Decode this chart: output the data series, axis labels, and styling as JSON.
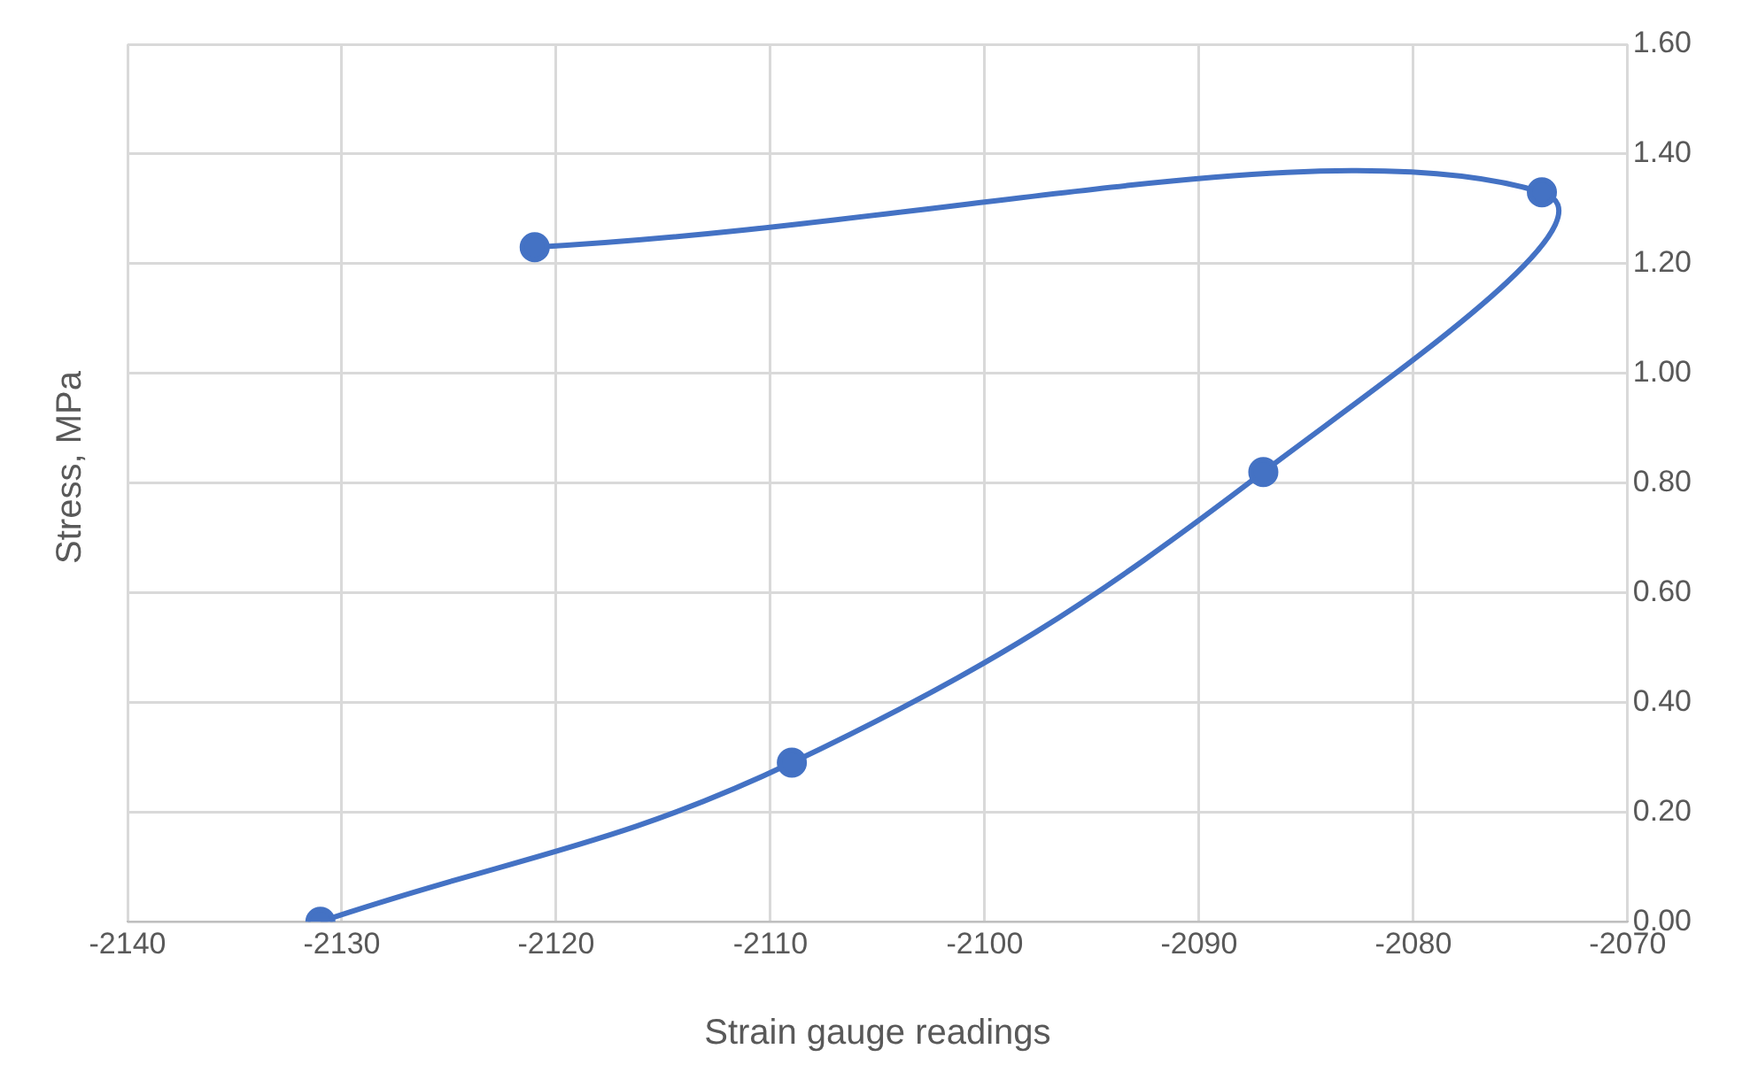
{
  "chart_data": {
    "type": "line",
    "xlabel": "Strain gauge readings",
    "ylabel": "Stress, MPa",
    "x": [
      -2131,
      -2109,
      -2087,
      -2074,
      -2121
    ],
    "series": [
      {
        "color": "#4472c4",
        "values": [
          0,
          0.29,
          0.82,
          1.33,
          1.23
        ]
      }
    ],
    "xlim": [
      -2140,
      -2070
    ],
    "xticks": [
      -2140,
      -2130,
      -2120,
      -2110,
      -2100,
      -2090,
      -2080,
      -2070
    ],
    "ylim": [
      0,
      1.6
    ],
    "yticks": [
      {
        "value": 0,
        "label": "0.00"
      },
      {
        "value": 0.2,
        "label": "0.20"
      },
      {
        "value": 0.4,
        "label": "0.40"
      },
      {
        "value": 0.6,
        "label": "0.60"
      },
      {
        "value": 0.8,
        "label": "0.80"
      },
      {
        "value": 1,
        "label": "1.00"
      },
      {
        "value": 1.2,
        "label": "1.20"
      },
      {
        "value": 1.4,
        "label": "1.40"
      },
      {
        "value": 1.6,
        "label": "1.60"
      }
    ],
    "grid": true,
    "legend": false,
    "marker": "circle",
    "line_style": "solid"
  }
}
